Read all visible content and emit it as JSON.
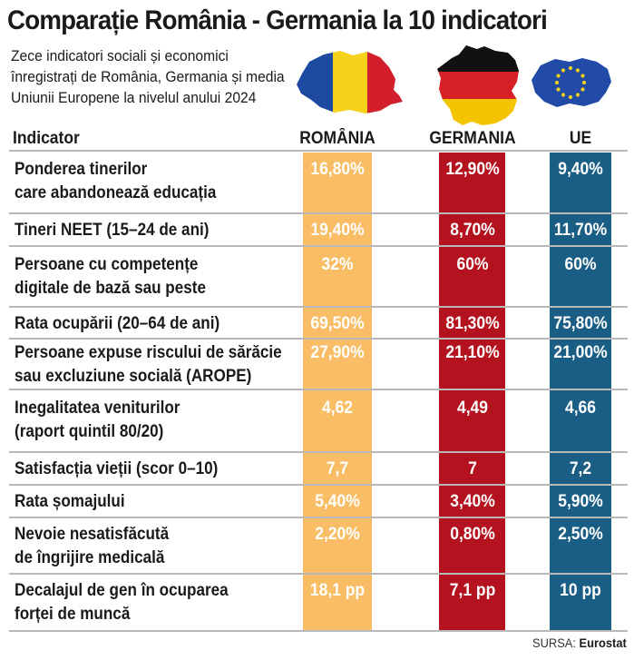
{
  "title": "Comparație România - Germania la 10 indicatori",
  "subtitle": "Zece  indicatori sociali și economici înregistrați de România, Germania și media Uniunii Europene la nivelul anului 2024",
  "source": {
    "label": "SURSA:",
    "name": "Eurostat"
  },
  "colors": {
    "romania": "#F9BD66",
    "germania": "#B3121E",
    "ue": "#1A5E86"
  },
  "chart_data": {
    "type": "table",
    "title": "Comparație România - Germania la 10 indicatori",
    "header": {
      "indicator": "Indicator",
      "romania": "ROMÂNIA",
      "germania": "GERMANIA",
      "ue": "UE"
    },
    "rows": [
      {
        "lines": [
          "Ponderea tinerilor",
          "care abandonează educația"
        ],
        "romania": "16,80%",
        "germania": "12,90%",
        "ue": "9,40%"
      },
      {
        "lines": [
          "Tineri NEET (15–24 de ani)"
        ],
        "romania": "19,40%",
        "germania": "8,70%",
        "ue": "11,70%"
      },
      {
        "lines": [
          "Persoane cu competențe",
          "digitale de bază sau peste"
        ],
        "romania": "32%",
        "germania": "60%",
        "ue": "60%"
      },
      {
        "lines": [
          "Rata ocupării (20–64 de ani)"
        ],
        "romania": "69,50%",
        "germania": "81,30%",
        "ue": "75,80%"
      },
      {
        "lines": [
          "Persoane expuse riscului de sărăcie",
          "sau excluziune socială (AROPE)"
        ],
        "romania": "27,90%",
        "germania": "21,10%",
        "ue": "21,00%"
      },
      {
        "lines": [
          "Inegalitatea veniturilor",
          "(raport quintil 80/20)"
        ],
        "romania": "4,62",
        "germania": "4,49",
        "ue": "4,66"
      },
      {
        "lines": [
          "Satisfacția vieții (scor 0–10)"
        ],
        "romania": "7,7",
        "germania": "7",
        "ue": "7,2"
      },
      {
        "lines": [
          "Rata șomajului"
        ],
        "romania": "5,40%",
        "germania": "3,40%",
        "ue": "5,90%"
      },
      {
        "lines": [
          "Nevoie nesatisfăcută",
          "de îngrijire medicală"
        ],
        "romania": "2,20%",
        "germania": "0,80%",
        "ue": "2,50%"
      },
      {
        "lines": [
          "Decalajul de gen în ocuparea",
          "forței de muncă"
        ],
        "romania": "18,1 pp",
        "germania": "7,1 pp",
        "ue": "10 pp"
      }
    ]
  }
}
